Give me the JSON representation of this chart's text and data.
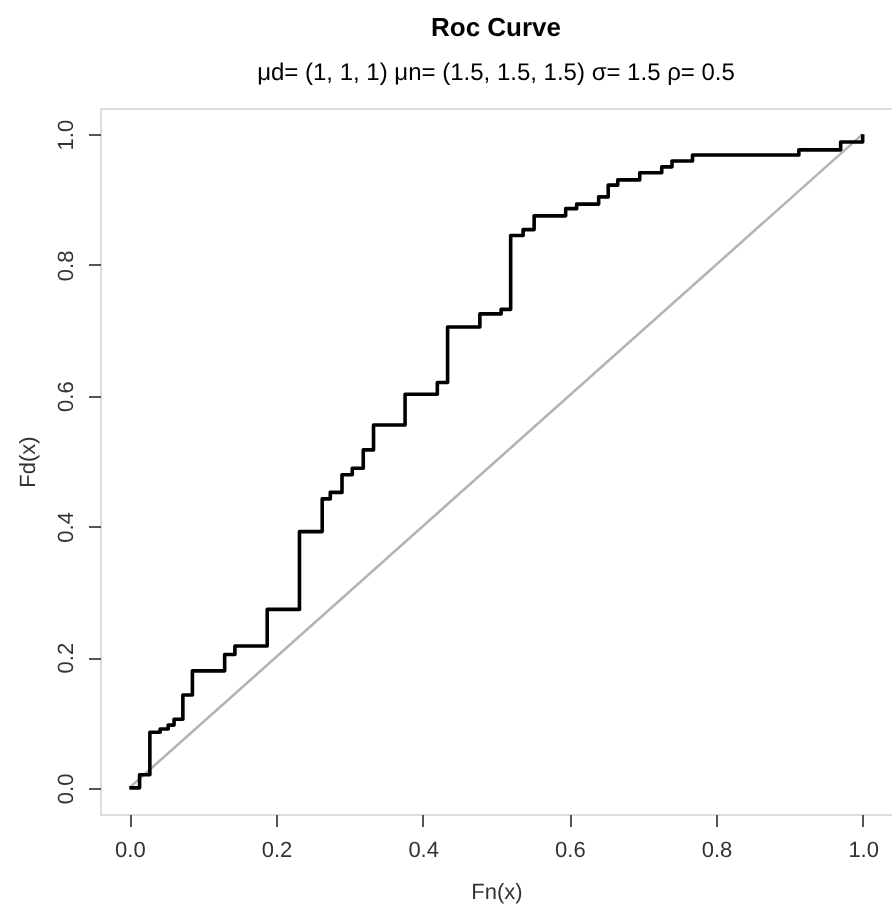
{
  "chart_data": {
    "type": "step",
    "title": "Roc Curve",
    "subtitle": "μd= (1, 1, 1)     μn= (1.5, 1.5, 1.5)    σ= 1.5    ρ= 0.5",
    "xlabel": "Fn(x)",
    "ylabel": "Fd(x)",
    "xlim": [
      -0.04,
      1.04
    ],
    "ylim": [
      -0.04,
      1.04
    ],
    "xticks": [
      {
        "value": 0,
        "label": "0.0"
      },
      0.2,
      0.4,
      0.6,
      0.8,
      {
        "value": 1,
        "label": "1.0"
      }
    ],
    "yticks": [
      {
        "value": 0,
        "label": "0.0"
      },
      0.2,
      0.4,
      0.6,
      0.8,
      {
        "value": 1,
        "label": "1.0"
      }
    ],
    "grid": false,
    "series": [
      {
        "color": "#000000",
        "x": [
          0,
          0.014,
          0.028,
          0.042,
          0.053,
          0.061,
          0.073,
          0.086,
          0.13,
          0.144,
          0.188,
          0.232,
          0.263,
          0.274,
          0.29,
          0.304,
          0.319,
          0.333,
          0.376,
          0.42,
          0.434,
          0.478,
          0.507,
          0.52,
          0.537,
          0.552,
          0.595,
          0.61,
          0.64,
          0.653,
          0.666,
          0.696,
          0.726,
          0.74,
          0.768,
          0.913,
          0.97,
          1.0
        ],
        "values": [
          0,
          0.02,
          0.085,
          0.09,
          0.096,
          0.105,
          0.142,
          0.179,
          0.204,
          0.217,
          0.273,
          0.392,
          0.442,
          0.452,
          0.479,
          0.489,
          0.517,
          0.555,
          0.602,
          0.62,
          0.705,
          0.725,
          0.732,
          0.845,
          0.854,
          0.875,
          0.886,
          0.893,
          0.904,
          0.922,
          0.93,
          0.941,
          0.95,
          0.959,
          0.968,
          0.976,
          0.988,
          1.0
        ]
      },
      {
        "type": "line",
        "color": "#b4b4b4",
        "x": [
          0,
          1
        ],
        "values": [
          0,
          1
        ]
      }
    ]
  }
}
